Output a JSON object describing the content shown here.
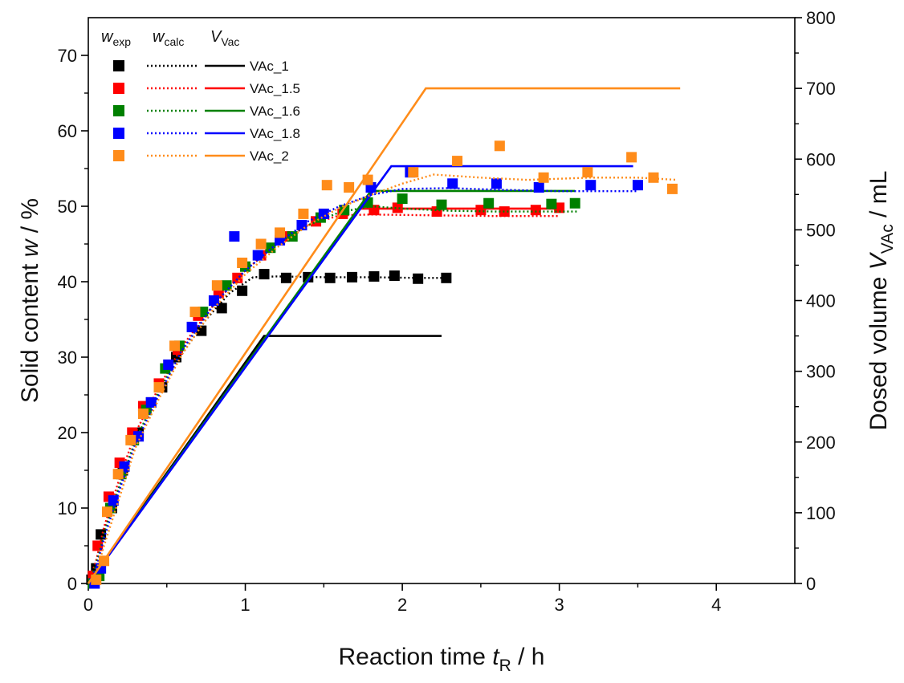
{
  "chart_data": {
    "type": "scatter",
    "xlabel": {
      "main": "Reaction time ",
      "italic": "t",
      "sub": "R",
      "unit": " / h"
    },
    "ylabel_left": {
      "main": "Solid content ",
      "italic": "w",
      "unit": " / %"
    },
    "ylabel_right": {
      "main": "Dosed volume ",
      "italic": "V",
      "sub": "VAc",
      "unit": " / mL"
    },
    "xlim": [
      0,
      4.5
    ],
    "ylim_left": [
      0,
      75
    ],
    "ylim_right": [
      0,
      800
    ],
    "x_ticks": [
      "0",
      "1",
      "2",
      "3",
      "4"
    ],
    "y_left_ticks": [
      "0",
      "10",
      "20",
      "30",
      "40",
      "50",
      "60",
      "70"
    ],
    "y_right_ticks": [
      "0",
      "100",
      "200",
      "300",
      "400",
      "500",
      "600",
      "700",
      "800"
    ],
    "grid": false,
    "legend": {
      "position": "top-left",
      "headers": [
        {
          "italic": "w",
          "sub": "exp"
        },
        {
          "italic": "w",
          "sub": "calc"
        },
        {
          "italic": "V",
          "sub": "Vac"
        }
      ]
    },
    "series": [
      {
        "name": "VAc_1",
        "color": "#000000",
        "w_exp": [
          [
            0.02,
            0.5
          ],
          [
            0.05,
            2
          ],
          [
            0.08,
            6.5
          ],
          [
            0.15,
            10
          ],
          [
            0.22,
            15
          ],
          [
            0.32,
            20
          ],
          [
            0.4,
            24
          ],
          [
            0.47,
            26
          ],
          [
            0.56,
            30
          ],
          [
            0.72,
            33.5
          ],
          [
            0.85,
            36.5
          ],
          [
            0.98,
            38.8
          ],
          [
            1.12,
            41
          ],
          [
            1.26,
            40.5
          ],
          [
            1.4,
            40.6
          ],
          [
            1.54,
            40.5
          ],
          [
            1.68,
            40.6
          ],
          [
            1.82,
            40.7
          ],
          [
            1.95,
            40.8
          ],
          [
            2.1,
            40.4
          ],
          [
            2.28,
            40.5
          ]
        ],
        "w_calc": [
          [
            0,
            0
          ],
          [
            0.05,
            3
          ],
          [
            0.1,
            7
          ],
          [
            0.2,
            13
          ],
          [
            0.3,
            19
          ],
          [
            0.45,
            25
          ],
          [
            0.6,
            30.5
          ],
          [
            0.75,
            35
          ],
          [
            0.9,
            38.5
          ],
          [
            1.05,
            40.6
          ],
          [
            1.2,
            40.7
          ],
          [
            1.5,
            40.6
          ],
          [
            1.8,
            40.6
          ],
          [
            2.1,
            40.5
          ],
          [
            2.28,
            40.5
          ]
        ],
        "v_dosed": [
          [
            0,
            0
          ],
          [
            1.12,
            350
          ],
          [
            2.25,
            350
          ]
        ]
      },
      {
        "name": "VAc_1.5",
        "color": "#ff0000",
        "w_exp": [
          [
            0.03,
            1
          ],
          [
            0.06,
            5
          ],
          [
            0.13,
            11.5
          ],
          [
            0.2,
            16
          ],
          [
            0.28,
            20
          ],
          [
            0.35,
            23.5
          ],
          [
            0.45,
            26.5
          ],
          [
            0.57,
            31
          ],
          [
            0.7,
            35.5
          ],
          [
            0.83,
            38.5
          ],
          [
            0.95,
            40.5
          ],
          [
            1.1,
            43.5
          ],
          [
            1.25,
            46
          ],
          [
            1.45,
            48
          ],
          [
            1.62,
            49
          ],
          [
            1.82,
            49.5
          ],
          [
            1.97,
            49.8
          ],
          [
            2.22,
            49.3
          ],
          [
            2.5,
            49.5
          ],
          [
            2.65,
            49.3
          ],
          [
            2.85,
            49.5
          ],
          [
            3.0,
            49.8
          ]
        ],
        "w_calc": [
          [
            0,
            0
          ],
          [
            0.05,
            3
          ],
          [
            0.1,
            7.5
          ],
          [
            0.2,
            14
          ],
          [
            0.3,
            20
          ],
          [
            0.45,
            26
          ],
          [
            0.6,
            31.5
          ],
          [
            0.8,
            37
          ],
          [
            1.0,
            41.5
          ],
          [
            1.2,
            45
          ],
          [
            1.4,
            47.5
          ],
          [
            1.6,
            48.8
          ],
          [
            1.8,
            48.9
          ],
          [
            2.2,
            48.8
          ],
          [
            2.6,
            48.7
          ],
          [
            3.0,
            48.7
          ]
        ],
        "v_dosed": [
          [
            0,
            0
          ],
          [
            1.73,
            530
          ],
          [
            2.98,
            530
          ]
        ]
      },
      {
        "name": "VAc_1.6",
        "color": "#008000",
        "w_exp": [
          [
            0.03,
            0
          ],
          [
            0.07,
            1
          ],
          [
            0.14,
            10
          ],
          [
            0.21,
            14.5
          ],
          [
            0.29,
            19
          ],
          [
            0.37,
            23
          ],
          [
            0.49,
            28.5
          ],
          [
            0.58,
            31.5
          ],
          [
            0.73,
            36
          ],
          [
            0.88,
            39.5
          ],
          [
            1.0,
            42
          ],
          [
            1.16,
            44.5
          ],
          [
            1.3,
            46
          ],
          [
            1.48,
            48.5
          ],
          [
            1.63,
            49.5
          ],
          [
            1.78,
            50.5
          ],
          [
            2.0,
            51
          ],
          [
            2.25,
            50.2
          ],
          [
            2.55,
            50.4
          ],
          [
            2.95,
            50.3
          ],
          [
            3.1,
            50.4
          ]
        ],
        "w_calc": [
          [
            0,
            0
          ],
          [
            0.05,
            2.5
          ],
          [
            0.1,
            6.5
          ],
          [
            0.2,
            13
          ],
          [
            0.3,
            19
          ],
          [
            0.45,
            25.5
          ],
          [
            0.6,
            31
          ],
          [
            0.8,
            37
          ],
          [
            1.0,
            41.5
          ],
          [
            1.2,
            45
          ],
          [
            1.4,
            47.5
          ],
          [
            1.6,
            49.2
          ],
          [
            1.8,
            50
          ],
          [
            2.0,
            49.7
          ],
          [
            2.3,
            49.4
          ],
          [
            2.6,
            49.3
          ],
          [
            3.0,
            49.3
          ],
          [
            3.12,
            49.3
          ]
        ],
        "v_dosed": [
          [
            0,
            0
          ],
          [
            1.8,
            555
          ],
          [
            3.1,
            555
          ]
        ]
      },
      {
        "name": "VAc_1.8",
        "color": "#0000ff",
        "w_exp": [
          [
            0.04,
            0
          ],
          [
            0.08,
            2
          ],
          [
            0.16,
            11
          ],
          [
            0.23,
            15.5
          ],
          [
            0.32,
            19.5
          ],
          [
            0.4,
            24
          ],
          [
            0.51,
            29
          ],
          [
            0.66,
            34
          ],
          [
            0.8,
            37.5
          ],
          [
            0.93,
            46
          ],
          [
            1.08,
            43.5
          ],
          [
            1.22,
            45.5
          ],
          [
            1.36,
            47.5
          ],
          [
            1.5,
            49
          ],
          [
            1.8,
            52.5
          ],
          [
            2.05,
            54.5
          ],
          [
            2.32,
            53
          ],
          [
            2.6,
            53
          ],
          [
            2.87,
            52.5
          ],
          [
            3.2,
            52.8
          ],
          [
            3.5,
            52.8
          ]
        ],
        "w_calc": [
          [
            0,
            0
          ],
          [
            0.05,
            2
          ],
          [
            0.1,
            6
          ],
          [
            0.2,
            12.5
          ],
          [
            0.3,
            18.5
          ],
          [
            0.45,
            25
          ],
          [
            0.6,
            31
          ],
          [
            0.8,
            37
          ],
          [
            1.0,
            41.5
          ],
          [
            1.2,
            45
          ],
          [
            1.4,
            48
          ],
          [
            1.6,
            50
          ],
          [
            1.8,
            51.5
          ],
          [
            2.0,
            52.3
          ],
          [
            2.3,
            52.4
          ],
          [
            2.6,
            52.2
          ],
          [
            3.0,
            52
          ],
          [
            3.5,
            52
          ]
        ],
        "v_dosed": [
          [
            0,
            0
          ],
          [
            1.93,
            590
          ],
          [
            3.47,
            590
          ]
        ]
      },
      {
        "name": "VAc_2",
        "color": "#ff8c1a",
        "w_exp": [
          [
            0.05,
            0.5
          ],
          [
            0.1,
            3
          ],
          [
            0.12,
            9.5
          ],
          [
            0.19,
            14.5
          ],
          [
            0.27,
            19
          ],
          [
            0.35,
            22.5
          ],
          [
            0.45,
            26
          ],
          [
            0.55,
            31.5
          ],
          [
            0.68,
            36
          ],
          [
            0.82,
            39.5
          ],
          [
            0.98,
            42.5
          ],
          [
            1.1,
            45
          ],
          [
            1.22,
            46.5
          ],
          [
            1.37,
            49
          ],
          [
            1.52,
            52.8
          ],
          [
            1.66,
            52.5
          ],
          [
            1.78,
            53.5
          ],
          [
            2.07,
            54.5
          ],
          [
            2.35,
            56
          ],
          [
            2.62,
            58
          ],
          [
            2.9,
            53.8
          ],
          [
            3.18,
            54.5
          ],
          [
            3.46,
            56.5
          ],
          [
            3.6,
            53.8
          ],
          [
            3.72,
            52.3
          ]
        ],
        "w_calc": [
          [
            0,
            0
          ],
          [
            0.05,
            1.5
          ],
          [
            0.1,
            5
          ],
          [
            0.2,
            11.5
          ],
          [
            0.3,
            18
          ],
          [
            0.45,
            24.5
          ],
          [
            0.6,
            30.5
          ],
          [
            0.8,
            36.5
          ],
          [
            1.0,
            41
          ],
          [
            1.2,
            44.5
          ],
          [
            1.4,
            47.5
          ],
          [
            1.6,
            49.8
          ],
          [
            1.8,
            51.5
          ],
          [
            2.0,
            53
          ],
          [
            2.2,
            54.2
          ],
          [
            2.5,
            53.8
          ],
          [
            2.8,
            53.5
          ],
          [
            3.2,
            53.8
          ],
          [
            3.5,
            53.8
          ],
          [
            3.75,
            53.5
          ]
        ],
        "v_dosed": [
          [
            0,
            0
          ],
          [
            2.15,
            700
          ],
          [
            3.77,
            700
          ]
        ]
      }
    ]
  }
}
